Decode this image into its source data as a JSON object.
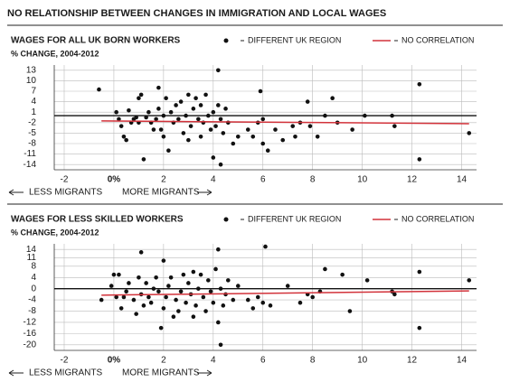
{
  "title": "NO RELATIONSHIP BETWEEN CHANGES IN IMMIGRATION AND LOCAL WAGES",
  "chart_data": [
    {
      "type": "scatter",
      "title": "WAGES FOR ALL UK BORN WORKERS",
      "subtitle": "% CHANGE, 2004-2012",
      "xlim": [
        -2.4,
        14.6
      ],
      "ylim": [
        -15.5,
        14.5
      ],
      "xticks": [
        -2,
        {
          "value": 0,
          "label": "0%"
        },
        2,
        4,
        6,
        8,
        10,
        12,
        14
      ],
      "yticks": [
        13,
        10,
        7,
        4,
        1,
        -2,
        -5,
        -8,
        -11,
        -14
      ],
      "grid": true,
      "annotations": [
        "LESS MIGRANTS",
        "MORE MIGRANTS"
      ],
      "series": [
        {
          "name": "DIFFERENT UK REGION",
          "type": "scatter",
          "color": "#111111",
          "x": [
            -0.6,
            0.1,
            0.2,
            0.3,
            0.4,
            0.5,
            0.6,
            0.7,
            0.8,
            0.9,
            1.0,
            1.0,
            1.1,
            1.2,
            1.3,
            1.4,
            1.5,
            1.6,
            1.7,
            1.8,
            1.8,
            1.9,
            2.0,
            2.0,
            2.1,
            2.2,
            2.3,
            2.4,
            2.5,
            2.6,
            2.7,
            2.8,
            2.9,
            3.0,
            3.0,
            3.1,
            3.2,
            3.3,
            3.4,
            3.5,
            3.5,
            3.6,
            3.7,
            3.8,
            3.9,
            4.0,
            4.0,
            4.1,
            4.2,
            4.2,
            4.3,
            4.3,
            4.4,
            4.5,
            4.6,
            4.8,
            5.0,
            5.4,
            5.6,
            5.8,
            5.9,
            6.0,
            6.0,
            6.2,
            6.5,
            6.8,
            7.2,
            7.3,
            7.5,
            7.8,
            7.9,
            8.2,
            8.5,
            8.8,
            9.0,
            9.6,
            10.1,
            11.2,
            11.3,
            12.3,
            12.3,
            14.3
          ],
          "values": [
            7.5,
            1,
            -1,
            -3,
            -6,
            -7,
            1.5,
            -2,
            -1,
            -0.5,
            5,
            -2,
            6,
            -12.5,
            -0.5,
            1,
            -2,
            -4,
            -1,
            8,
            2,
            -4,
            -6,
            0,
            5,
            -10,
            1,
            -2,
            3,
            -1,
            4,
            -5,
            0,
            6,
            -7,
            -3,
            2,
            5,
            -1,
            3,
            -6,
            -2,
            6,
            0,
            -4,
            1,
            -12,
            -3,
            3,
            13,
            -1,
            -14,
            -5,
            2,
            -2,
            -8,
            -6,
            -4,
            -6,
            -2,
            7,
            -1,
            -8,
            -10,
            -4,
            -7,
            -3,
            -6,
            -2,
            4,
            -3,
            -6,
            0,
            5,
            -2,
            -4,
            0,
            0,
            -3,
            9,
            -12.5,
            -5
          ]
        },
        {
          "name": "NO CORRELATION",
          "type": "line",
          "color": "#d2323a",
          "x": [
            -0.5,
            14.3
          ],
          "values": [
            -1.5,
            -2.3
          ]
        }
      ]
    },
    {
      "type": "scatter",
      "title": "WAGES FOR LESS SKILLED WORKERS",
      "subtitle": "% CHANGE, 2004-2012",
      "xlim": [
        -2.4,
        14.6
      ],
      "ylim": [
        -22,
        16
      ],
      "xticks": [
        -2,
        {
          "value": 0,
          "label": "0%"
        },
        2,
        4,
        6,
        8,
        10,
        12,
        14
      ],
      "yticks": [
        14,
        11,
        8,
        4,
        0,
        -4,
        -8,
        -12,
        -16,
        -20
      ],
      "grid": true,
      "annotations": [
        "LESS MIGRANTS",
        "MORE MIGRANTS"
      ],
      "series": [
        {
          "name": "DIFFERENT UK REGION",
          "type": "scatter",
          "color": "#111111",
          "x": [
            -0.5,
            -0.1,
            0.0,
            0.1,
            0.2,
            0.3,
            0.4,
            0.5,
            0.6,
            0.8,
            0.9,
            1.0,
            1.1,
            1.1,
            1.2,
            1.3,
            1.4,
            1.5,
            1.6,
            1.7,
            1.8,
            1.9,
            2.0,
            2.0,
            2.1,
            2.2,
            2.3,
            2.4,
            2.5,
            2.6,
            2.7,
            2.8,
            2.9,
            3.0,
            3.1,
            3.2,
            3.2,
            3.3,
            3.4,
            3.5,
            3.6,
            3.7,
            3.8,
            3.9,
            4.0,
            4.1,
            4.2,
            4.2,
            4.3,
            4.3,
            4.4,
            4.5,
            4.6,
            4.8,
            5.0,
            5.4,
            5.6,
            5.8,
            6.0,
            6.1,
            6.3,
            7.0,
            7.5,
            7.8,
            8.0,
            8.3,
            8.5,
            9.2,
            9.5,
            10.2,
            11.2,
            11.3,
            12.3,
            12.3,
            14.3
          ],
          "values": [
            -4,
            1,
            5,
            -3,
            5,
            -7,
            -3,
            -1,
            2,
            -4,
            -9,
            4,
            13,
            -2,
            -6,
            2,
            -3,
            -5,
            0,
            4,
            -1,
            -14,
            10,
            -7,
            -3,
            1,
            4,
            -10,
            -4,
            -8,
            -1,
            5,
            -5,
            2,
            -2,
            6,
            -10,
            -6,
            0,
            5,
            -3,
            -8,
            3,
            -1,
            -5,
            7,
            -12,
            14,
            0,
            -20,
            -6,
            -2,
            3,
            -4,
            1,
            -4,
            -7,
            -3,
            -5,
            15,
            -6,
            1,
            -5,
            -2,
            -3,
            -1,
            7,
            5,
            -8,
            3,
            -1,
            -2,
            6,
            -14,
            3
          ]
        },
        {
          "name": "NO CORRELATION",
          "type": "line",
          "color": "#d2323a",
          "x": [
            -0.5,
            14.3
          ],
          "values": [
            -2.3,
            -0.8
          ]
        }
      ]
    }
  ]
}
